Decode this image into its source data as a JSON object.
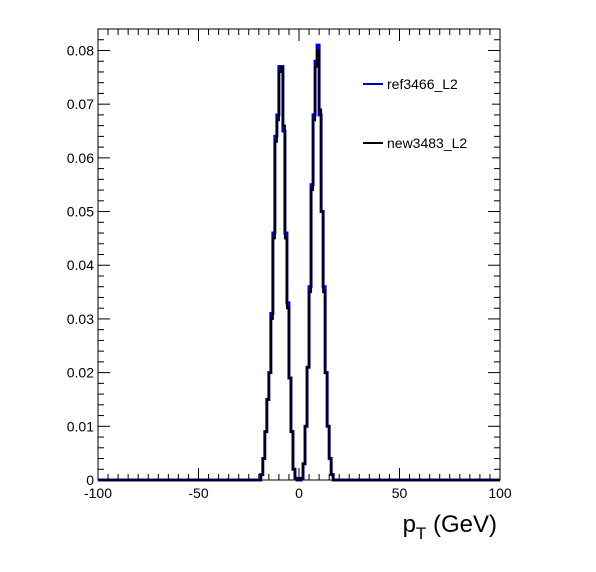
{
  "chart_data": {
    "type": "line",
    "style": "step-histogram",
    "title": "",
    "xlabel": "p_T (GeV)",
    "ylabel": "",
    "xlim": [
      -100,
      100
    ],
    "ylim": [
      0,
      0.084
    ],
    "grid": false,
    "legend_position": "top-right",
    "x_ticks": [
      -100,
      -50,
      0,
      50,
      100
    ],
    "x_tick_labels": [
      "-100",
      "-50",
      "0",
      "50",
      "100"
    ],
    "y_ticks": [
      0,
      0.01,
      0.02,
      0.03,
      0.04,
      0.05,
      0.06,
      0.07,
      0.08
    ],
    "y_tick_labels": [
      "0",
      "0.01",
      "0.02",
      "0.03",
      "0.04",
      "0.05",
      "0.06",
      "0.07",
      "0.08"
    ],
    "x_bin_edges": [
      -20,
      -19,
      -18,
      -17,
      -16,
      -15,
      -14,
      -13,
      -12,
      -11,
      -10,
      -9,
      -8,
      -7,
      -6,
      -5,
      -4,
      -3,
      -2,
      -1,
      0,
      1,
      2,
      3,
      4,
      5,
      6,
      7,
      8,
      9,
      10,
      11,
      12,
      13,
      14,
      15,
      16,
      17,
      18,
      19,
      20
    ],
    "series": [
      {
        "name": "ref3466_L2",
        "color": "#0000cc",
        "values": [
          0,
          0.001,
          0.004,
          0.009,
          0.015,
          0.02,
          0.031,
          0.046,
          0.064,
          0.068,
          0.077,
          0.077,
          0.065,
          0.046,
          0.033,
          0.019,
          0.009,
          0.002,
          0.0003,
          0,
          0,
          0.0003,
          0.003,
          0.01,
          0.021,
          0.036,
          0.055,
          0.068,
          0.078,
          0.081,
          0.068,
          0.05,
          0.036,
          0.02,
          0.01,
          0.004,
          0.001,
          0,
          0,
          0
        ]
      },
      {
        "name": "new3483_L2",
        "color": "#000000",
        "values": [
          0,
          0.001,
          0.004,
          0.009,
          0.015,
          0.02,
          0.03,
          0.045,
          0.063,
          0.067,
          0.076,
          0.077,
          0.066,
          0.045,
          0.032,
          0.019,
          0.009,
          0.002,
          0.0003,
          0,
          0,
          0.0003,
          0.003,
          0.01,
          0.021,
          0.035,
          0.054,
          0.067,
          0.077,
          0.08,
          0.069,
          0.05,
          0.035,
          0.02,
          0.01,
          0.004,
          0.001,
          0,
          0,
          0
        ]
      }
    ]
  }
}
